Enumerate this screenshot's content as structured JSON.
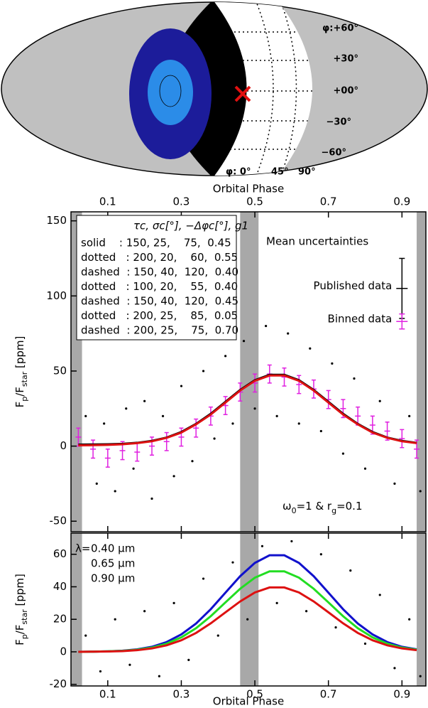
{
  "map": {
    "lat_labels": [
      "φ:+60°",
      "+30°",
      "+00°",
      "−30°",
      "−60°"
    ],
    "lon_labels": [
      "φ: 0°",
      "45°",
      "90°"
    ]
  },
  "chart_data": [
    {
      "type": "line",
      "xlabel": "Orbital Phase",
      "xaxis_position": "top",
      "ylabel_parts": [
        "F",
        "p",
        "/F",
        "star",
        " [ppm]"
      ],
      "xlim": [
        0,
        0.965
      ],
      "xticks": [
        0.1,
        0.3,
        0.5,
        0.7,
        0.9
      ],
      "ylim": [
        -57,
        156
      ],
      "yticks": [
        -50,
        0,
        50,
        100,
        150
      ],
      "shaded": [
        [
          0,
          0.03
        ],
        [
          0.46,
          0.51
        ],
        [
          0.94,
          0.965
        ]
      ],
      "x": [
        0.02,
        0.06,
        0.1,
        0.14,
        0.18,
        0.22,
        0.26,
        0.3,
        0.34,
        0.38,
        0.42,
        0.46,
        0.5,
        0.54,
        0.58,
        0.62,
        0.66,
        0.7,
        0.74,
        0.78,
        0.82,
        0.86,
        0.9,
        0.94
      ],
      "series": [
        {
          "color": "#000000",
          "values": [
            1,
            1.1,
            1.2,
            1.5,
            2.2,
            3.5,
            5.7,
            9.4,
            14.8,
            21.5,
            29.5,
            37.4,
            43.9,
            47.5,
            47.5,
            43.9,
            37.4,
            29.5,
            21.5,
            14.8,
            9.4,
            5.7,
            3.5,
            2.2
          ]
        },
        {
          "color": "#dd1111",
          "values": [
            0.5,
            0.6,
            0.8,
            1.2,
            2,
            3.2,
            5.5,
            9,
            14.5,
            21,
            29,
            37,
            43.5,
            47,
            47,
            43.5,
            37,
            29,
            21,
            14.5,
            9,
            5.5,
            3.2,
            2
          ]
        }
      ],
      "scatter": {
        "color": "#000000",
        "x": [
          0.04,
          0.07,
          0.09,
          0.12,
          0.15,
          0.17,
          0.2,
          0.22,
          0.25,
          0.28,
          0.3,
          0.33,
          0.36,
          0.39,
          0.42,
          0.44,
          0.47,
          0.5,
          0.53,
          0.56,
          0.59,
          0.62,
          0.65,
          0.68,
          0.71,
          0.74,
          0.77,
          0.8,
          0.84,
          0.88,
          0.92,
          0.95
        ],
        "y": [
          20,
          -25,
          15,
          -30,
          25,
          -15,
          30,
          -35,
          20,
          -20,
          40,
          -10,
          50,
          5,
          60,
          15,
          70,
          25,
          80,
          20,
          75,
          15,
          65,
          10,
          55,
          -5,
          45,
          -15,
          30,
          -25,
          20,
          -30
        ]
      },
      "binned": {
        "color": "#e020e0",
        "x": [
          0.02,
          0.06,
          0.1,
          0.14,
          0.18,
          0.22,
          0.26,
          0.3,
          0.34,
          0.38,
          0.42,
          0.46,
          0.5,
          0.54,
          0.58,
          0.62,
          0.66,
          0.7,
          0.74,
          0.78,
          0.82,
          0.86,
          0.9,
          0.94
        ],
        "values": [
          6,
          -2,
          -8,
          -3,
          -4,
          0,
          3,
          6,
          12,
          20,
          27,
          36,
          42,
          48,
          46,
          41,
          38,
          31,
          25,
          20,
          14,
          10,
          5,
          -2
        ],
        "errors": [
          6,
          6,
          6,
          6,
          6,
          6,
          6,
          6,
          6,
          6,
          6,
          6,
          6,
          6,
          6,
          6,
          6,
          6,
          6,
          6,
          6,
          6,
          6,
          6
        ]
      },
      "uncertainty_title": "Mean uncertainties",
      "uncertainties": [
        {
          "name": "Published data",
          "color": "#000000",
          "x": 0.9,
          "value": 105,
          "error": 20
        },
        {
          "name": "Binned data",
          "color": "#e020e0",
          "x": 0.9,
          "value": 83,
          "error": 5
        }
      ],
      "annotation_parts": [
        "ω",
        "0",
        "=1 & r",
        "g",
        "=0.1"
      ],
      "legend_table": {
        "header": "τc,   σc[°],  −Δφc[°],  g1",
        "rows": [
          {
            "text": "solid    : 150, 25,    75,  0.45",
            "color": "#000000"
          },
          {
            "text": "dotted   : 200, 20,    60,  0.55",
            "color": "#22dd22"
          },
          {
            "text": "dashed  : 150, 40,  120,  0.40",
            "color": "#22dd22"
          },
          {
            "text": "dotted   : 100, 20,    55,  0.40",
            "color": "#1111cc"
          },
          {
            "text": "dashed  : 150, 40,  120,  0.45",
            "color": "#1111cc"
          },
          {
            "text": "dotted   : 200, 25,    85,  0.05",
            "color": "#dd1111"
          },
          {
            "text": "dashed  : 200, 25,    75,  0.70",
            "color": "#dd1111"
          }
        ]
      }
    },
    {
      "type": "line",
      "xlabel": "Orbital Phase",
      "xaxis_position": "bottom",
      "ylabel_parts": [
        "F",
        "p",
        "/F",
        "star",
        " [ppm]"
      ],
      "xlim": [
        0,
        0.965
      ],
      "xticks": [
        0.1,
        0.3,
        0.5,
        0.7,
        0.9
      ],
      "ylim": [
        -21,
        73
      ],
      "yticks": [
        -20,
        0,
        20,
        40,
        60
      ],
      "shaded": [
        [
          0,
          0.03
        ],
        [
          0.46,
          0.51
        ],
        [
          0.94,
          0.965
        ]
      ],
      "legend_prefix": "λ=",
      "x": [
        0.02,
        0.06,
        0.1,
        0.14,
        0.18,
        0.22,
        0.26,
        0.3,
        0.34,
        0.38,
        0.42,
        0.46,
        0.5,
        0.54,
        0.58,
        0.62,
        0.66,
        0.7,
        0.74,
        0.78,
        0.82,
        0.86,
        0.9,
        0.94
      ],
      "series": [
        {
          "name": "0.40 μm",
          "color": "#1111cc",
          "values": [
            0,
            0.1,
            0.3,
            0.7,
            1.5,
            3.1,
            6,
            10.7,
            17.4,
            26.2,
            36.4,
            46.5,
            54.7,
            59.4,
            59.4,
            54.7,
            46.5,
            36.4,
            26.2,
            17.4,
            10.7,
            6,
            3.1,
            1.5
          ]
        },
        {
          "name": "0.65 μm",
          "color": "#22dd22",
          "values": [
            0,
            0.1,
            0.3,
            0.6,
            1.3,
            2.6,
            5,
            8.9,
            14.5,
            21.9,
            30.4,
            38.8,
            45.6,
            49.5,
            49.5,
            45.6,
            38.8,
            30.4,
            21.9,
            14.5,
            8.9,
            5,
            2.6,
            1.3
          ]
        },
        {
          "name": "0.90 μm",
          "color": "#dd1111",
          "values": [
            0,
            0.1,
            0.2,
            0.4,
            1,
            2.1,
            4,
            7.1,
            11.6,
            17.5,
            24.3,
            31,
            36.5,
            39.6,
            39.6,
            36.5,
            31,
            24.3,
            17.5,
            11.6,
            7.1,
            4,
            2.1,
            1
          ]
        }
      ],
      "scatter": {
        "color": "#000000",
        "x": [
          0.04,
          0.08,
          0.12,
          0.16,
          0.2,
          0.24,
          0.28,
          0.32,
          0.36,
          0.4,
          0.44,
          0.48,
          0.52,
          0.56,
          0.6,
          0.64,
          0.68,
          0.72,
          0.76,
          0.8,
          0.84,
          0.88,
          0.92,
          0.95
        ],
        "y": [
          10,
          -12,
          20,
          -8,
          25,
          -15,
          30,
          -5,
          45,
          10,
          55,
          20,
          65,
          30,
          68,
          25,
          60,
          15,
          50,
          5,
          35,
          -10,
          20,
          -15
        ]
      }
    }
  ]
}
